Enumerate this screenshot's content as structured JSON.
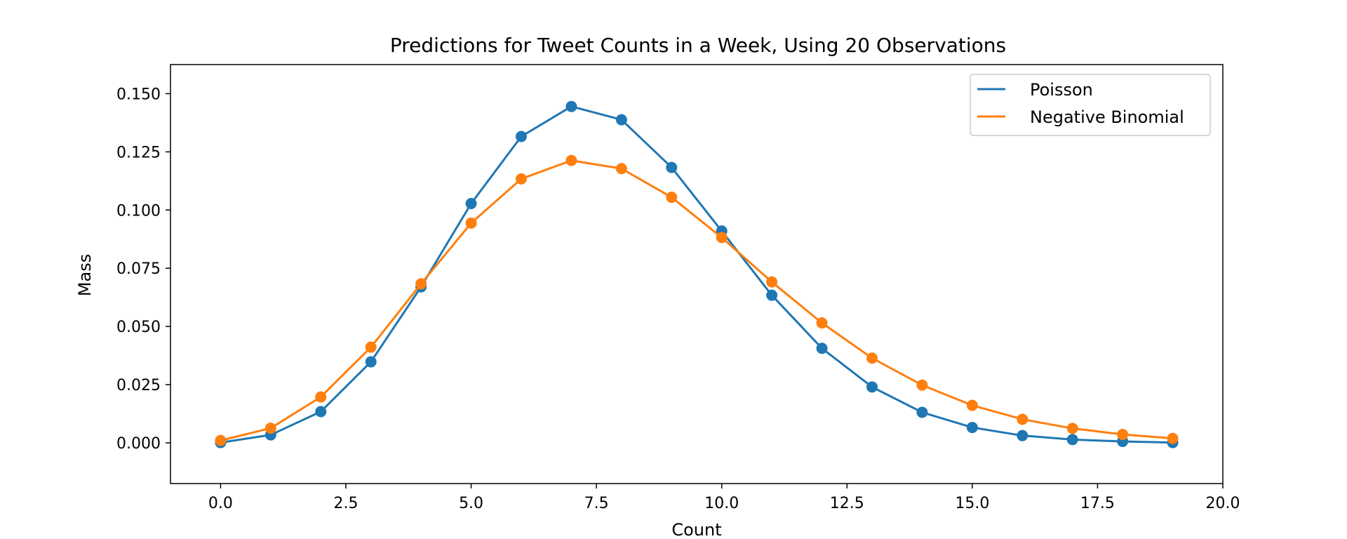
{
  "chart_data": {
    "type": "line",
    "title": "Predictions for Tweet Counts in a Week, Using 20 Observations",
    "xlabel": "Count",
    "ylabel": "Mass",
    "xlim": [
      -1.0,
      20.0
    ],
    "ylim": [
      -0.0175,
      0.1625
    ],
    "xticks": [
      0.0,
      2.5,
      5.0,
      7.5,
      10.0,
      12.5,
      15.0,
      17.5,
      20.0
    ],
    "xtick_labels": [
      "0.0",
      "2.5",
      "5.0",
      "7.5",
      "10.0",
      "12.5",
      "15.0",
      "17.5",
      "20.0"
    ],
    "yticks": [
      0.0,
      0.025,
      0.05,
      0.075,
      0.1,
      0.125,
      0.15
    ],
    "ytick_labels": [
      "0.000",
      "0.025",
      "0.050",
      "0.075",
      "0.100",
      "0.125",
      "0.150"
    ],
    "grid": false,
    "legend_position": "top-right",
    "x": [
      0,
      1,
      2,
      3,
      4,
      5,
      6,
      7,
      8,
      9,
      10,
      11,
      12,
      13,
      14,
      15,
      16,
      17,
      18,
      19
    ],
    "series": [
      {
        "name": "Poisson",
        "color": "#1f77b4",
        "values": [
          0.0001,
          0.0034,
          0.0134,
          0.0348,
          0.067,
          0.1028,
          0.1316,
          0.1445,
          0.1388,
          0.1183,
          0.091,
          0.0634,
          0.0406,
          0.024,
          0.0131,
          0.0066,
          0.0031,
          0.0014,
          0.0006,
          0.0001
        ]
      },
      {
        "name": "Negative Binomial",
        "color": "#ff7f0e",
        "values": [
          0.001,
          0.0063,
          0.0197,
          0.0411,
          0.0683,
          0.0944,
          0.1134,
          0.1213,
          0.1178,
          0.1055,
          0.0882,
          0.0691,
          0.0515,
          0.0364,
          0.0248,
          0.0161,
          0.0101,
          0.0062,
          0.0036,
          0.0019
        ]
      }
    ]
  }
}
